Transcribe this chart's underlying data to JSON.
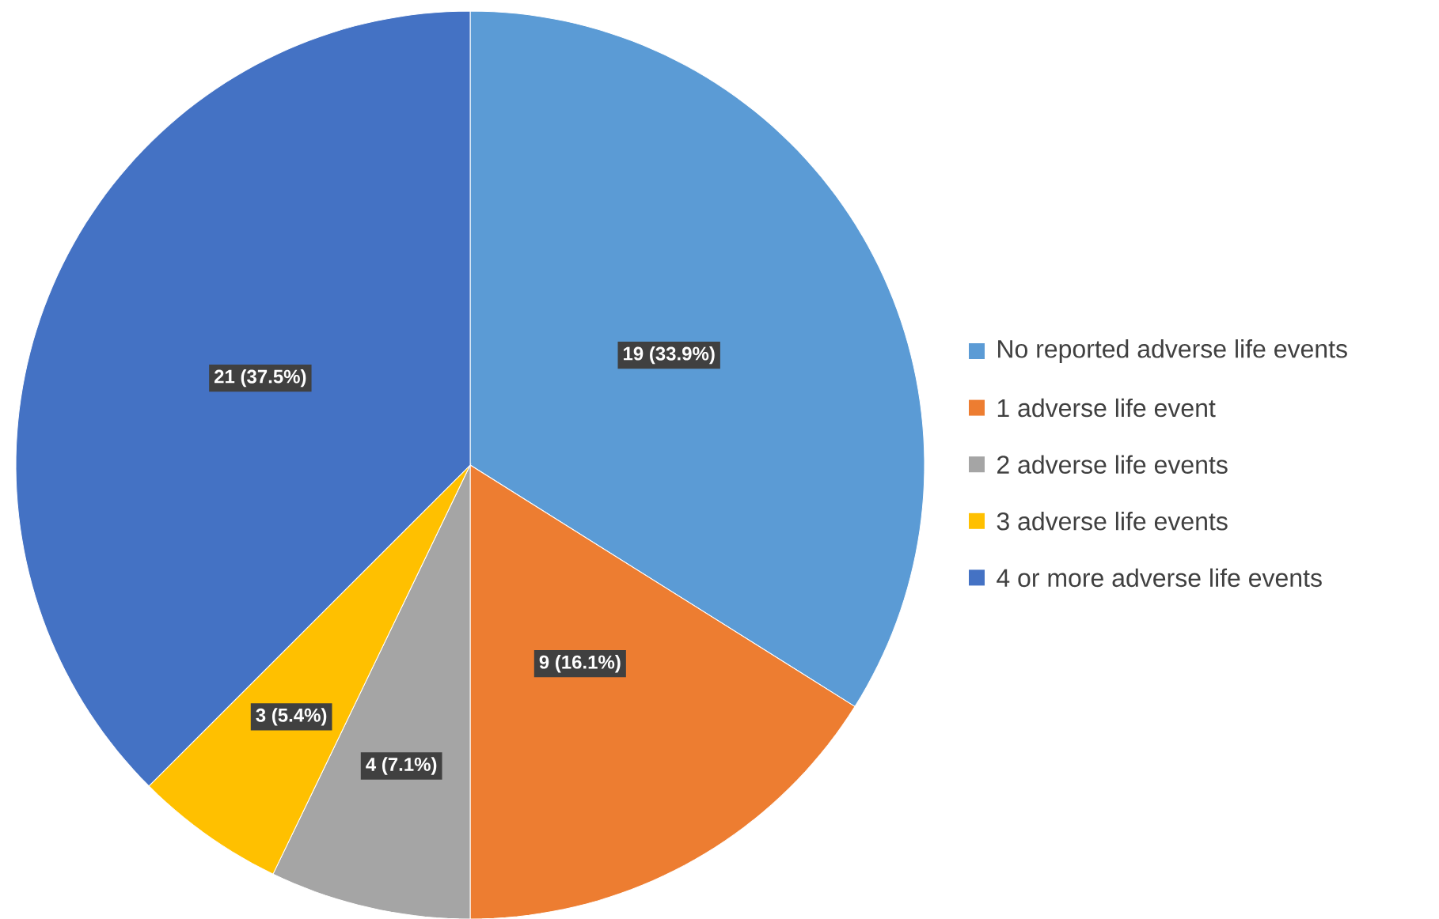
{
  "chart_data": {
    "type": "pie",
    "categories": [
      "No reported adverse life events",
      "1 adverse life event",
      "2 adverse life events",
      "3 adverse life events",
      "4 or more adverse life events"
    ],
    "values": [
      19,
      9,
      4,
      3,
      21
    ],
    "colors": [
      "#5b9bd5",
      "#ed7d31",
      "#a5a5a5",
      "#ffc000",
      "#4472c4"
    ],
    "value_labels": [
      "19 (33.9%)",
      "9 (16.1%)",
      "4 (7.1%)",
      "3 (5.4%)",
      "21 (37.5%)"
    ],
    "legend": "right"
  }
}
